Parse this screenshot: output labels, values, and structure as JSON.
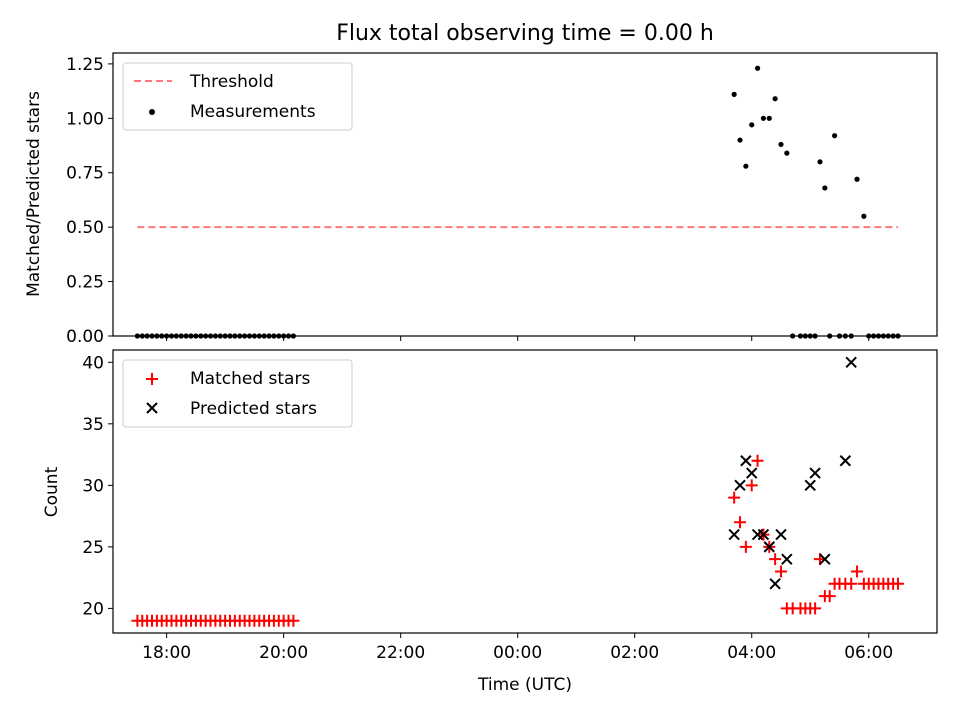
{
  "chart_data": [
    {
      "type": "scatter",
      "title": "Flux total observing time = 0.00 h",
      "xlabel": "",
      "ylabel": "Matched/Predicted stars",
      "xlim": [
        "17:05",
        "31:10"
      ],
      "ylim": [
        0,
        1.3
      ],
      "yticks": [
        "0.00",
        "0.25",
        "0.50",
        "0.75",
        "1.00",
        "1.25"
      ],
      "ytick_values": [
        0,
        0.25,
        0.5,
        0.75,
        1.0,
        1.25
      ],
      "legend": {
        "placement": "top-left",
        "entries": [
          "Threshold",
          "Measurements"
        ]
      },
      "series": [
        {
          "name": "Threshold",
          "style": "dashed-line",
          "color": "#ff7777",
          "x": [
            "17:30",
            "30:30"
          ],
          "y": [
            0.5,
            0.5
          ]
        },
        {
          "name": "Measurements",
          "style": "dot",
          "color": "#000000",
          "x": [
            "17:30",
            "17:35",
            "17:40",
            "17:45",
            "17:50",
            "17:55",
            "18:00",
            "18:05",
            "18:10",
            "18:15",
            "18:20",
            "18:25",
            "18:30",
            "18:35",
            "18:40",
            "18:45",
            "18:50",
            "18:55",
            "19:00",
            "19:05",
            "19:10",
            "19:15",
            "19:20",
            "19:25",
            "19:30",
            "19:35",
            "19:40",
            "19:45",
            "19:50",
            "19:55",
            "20:00",
            "20:05",
            "20:10",
            "27:42",
            "27:48",
            "27:54",
            "28:00",
            "28:06",
            "28:12",
            "28:18",
            "28:24",
            "28:30",
            "28:36",
            "28:42",
            "28:50",
            "28:55",
            "29:00",
            "29:05",
            "29:10",
            "29:15",
            "29:20",
            "29:25",
            "29:30",
            "29:36",
            "29:42",
            "29:48",
            "29:55",
            "30:00",
            "30:05",
            "30:10",
            "30:15",
            "30:20",
            "30:25",
            "30:30"
          ],
          "y": [
            0,
            0,
            0,
            0,
            0,
            0,
            0,
            0,
            0,
            0,
            0,
            0,
            0,
            0,
            0,
            0,
            0,
            0,
            0,
            0,
            0,
            0,
            0,
            0,
            0,
            0,
            0,
            0,
            0,
            0,
            0,
            0,
            0,
            1.11,
            0.9,
            0.78,
            0.97,
            1.23,
            1.0,
            1.0,
            1.09,
            0.88,
            0.84,
            0,
            0,
            0,
            0,
            0,
            0.8,
            0.68,
            0,
            0.92,
            0,
            0,
            0,
            0.72,
            0.55,
            0,
            0,
            0,
            0,
            0,
            0,
            0
          ]
        }
      ]
    },
    {
      "type": "scatter",
      "title": "",
      "xlabel": "Time (UTC)",
      "ylabel": "Count",
      "xlim": [
        "17:05",
        "31:10"
      ],
      "ylim": [
        18,
        41
      ],
      "xticks": [
        "18:00",
        "20:00",
        "22:00",
        "00:00",
        "02:00",
        "04:00",
        "06:00"
      ],
      "yticks": [
        "20",
        "25",
        "30",
        "35",
        "40"
      ],
      "ytick_values": [
        20,
        25,
        30,
        35,
        40
      ],
      "legend": {
        "placement": "top-left",
        "entries": [
          "Matched stars",
          "Predicted stars"
        ]
      },
      "series": [
        {
          "name": "Matched stars",
          "style": "plus",
          "color": "#ff0000",
          "x": [
            "17:30",
            "17:35",
            "17:40",
            "17:45",
            "17:50",
            "17:55",
            "18:00",
            "18:05",
            "18:10",
            "18:15",
            "18:20",
            "18:25",
            "18:30",
            "18:35",
            "18:40",
            "18:45",
            "18:50",
            "18:55",
            "19:00",
            "19:05",
            "19:10",
            "19:15",
            "19:20",
            "19:25",
            "19:30",
            "19:35",
            "19:40",
            "19:45",
            "19:50",
            "19:55",
            "20:00",
            "20:05",
            "20:10",
            "27:42",
            "27:48",
            "27:54",
            "28:00",
            "28:06",
            "28:12",
            "28:18",
            "28:24",
            "28:30",
            "28:36",
            "28:42",
            "28:50",
            "28:55",
            "29:00",
            "29:05",
            "29:10",
            "29:15",
            "29:20",
            "29:25",
            "29:30",
            "29:36",
            "29:42",
            "29:48",
            "29:55",
            "30:00",
            "30:05",
            "30:10",
            "30:15",
            "30:20",
            "30:25",
            "30:30"
          ],
          "y": [
            19,
            19,
            19,
            19,
            19,
            19,
            19,
            19,
            19,
            19,
            19,
            19,
            19,
            19,
            19,
            19,
            19,
            19,
            19,
            19,
            19,
            19,
            19,
            19,
            19,
            19,
            19,
            19,
            19,
            19,
            19,
            19,
            19,
            29,
            27,
            25,
            30,
            32,
            26,
            25,
            24,
            23,
            20,
            20,
            20,
            20,
            20,
            20,
            24,
            21,
            21,
            22,
            22,
            22,
            22,
            23,
            22,
            22,
            22,
            22,
            22,
            22,
            22,
            22
          ]
        },
        {
          "name": "Predicted stars",
          "style": "x",
          "color": "#000000",
          "x": [
            "27:42",
            "27:48",
            "27:54",
            "28:00",
            "28:06",
            "28:12",
            "28:18",
            "28:24",
            "28:30",
            "28:36",
            "29:00",
            "29:05",
            "29:15",
            "29:36",
            "29:42"
          ],
          "y": [
            26,
            30,
            32,
            31,
            26,
            26,
            25,
            22,
            26,
            24,
            30,
            31,
            24,
            32,
            40
          ]
        }
      ]
    }
  ]
}
